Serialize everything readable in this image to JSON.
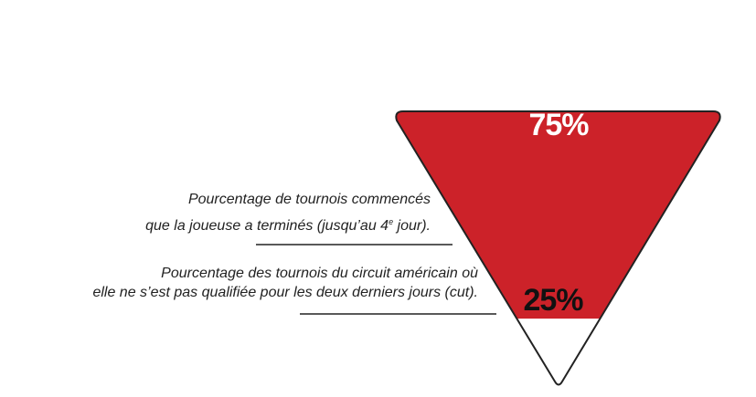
{
  "chart_data": {
    "type": "funnel",
    "segments": [
      {
        "label_value": "75%",
        "value": 75,
        "color": "#cc2229"
      },
      {
        "label_value": "25%",
        "value": 25,
        "color": "#ffffff"
      }
    ]
  },
  "annotations": {
    "completed_line1": "Pourcentage de tournois commencés",
    "completed_line2_pre": "que la joueuse a terminés (jusqu’au 4",
    "completed_line2_sup": "e",
    "completed_line2_post": " jour).",
    "cut_line1": "Pourcentage des tournois du circuit américain où",
    "cut_line2": "elle ne s’est pas qualifiée pour les deux derniers jours (cut)."
  },
  "colors": {
    "outline": "#222222",
    "label_top": "#ffffff",
    "label_bottom": "#111111",
    "text": "#222222"
  }
}
